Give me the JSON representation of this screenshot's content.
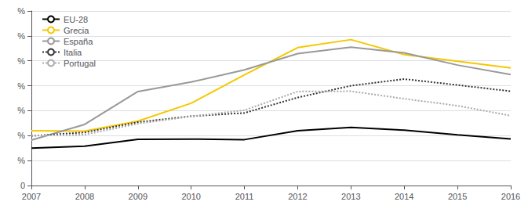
{
  "chart_data": {
    "type": "line",
    "x": [
      2007,
      2008,
      2009,
      2010,
      2011,
      2012,
      2013,
      2014,
      2015,
      2016
    ],
    "series": [
      {
        "name": "EU-28",
        "color": "#000000",
        "line_style": "solid",
        "values": [
          15.0,
          15.8,
          18.5,
          18.6,
          18.4,
          22.0,
          23.3,
          22.2,
          20.3,
          18.7
        ]
      },
      {
        "name": "Grecia",
        "color": "#F5C800",
        "line_style": "solid",
        "values": [
          22.0,
          21.8,
          25.8,
          33.0,
          44.4,
          55.3,
          58.5,
          52.5,
          49.8,
          47.2
        ]
      },
      {
        "name": "España",
        "color": "#999999",
        "line_style": "solid",
        "values": [
          18.2,
          24.5,
          37.7,
          41.5,
          46.4,
          52.9,
          55.5,
          53.2,
          48.3,
          44.5
        ]
      },
      {
        "name": "Italia",
        "color": "#333333",
        "line_style": "dotted",
        "values": [
          19.9,
          21.3,
          25.4,
          27.8,
          29.1,
          35.3,
          40.0,
          42.7,
          40.3,
          37.8
        ]
      },
      {
        "name": "Portugal",
        "color": "#aaaaaa",
        "line_style": "dotted",
        "values": [
          20.0,
          20.4,
          24.8,
          27.7,
          30.2,
          37.7,
          37.8,
          34.8,
          32.0,
          28.0
        ]
      }
    ],
    "xlim": [
      2007,
      2016
    ],
    "xticks": [
      2007,
      2008,
      2009,
      2010,
      2011,
      2012,
      2013,
      2014,
      2015,
      2016
    ],
    "ylim": [
      0,
      70
    ],
    "yticks": [
      0,
      {
        "value": 10,
        "label": "%"
      },
      {
        "value": 20,
        "label": "%"
      },
      {
        "value": 30,
        "label": "%"
      },
      {
        "value": 40,
        "label": "%"
      },
      {
        "value": 50,
        "label": "%"
      },
      {
        "value": 60,
        "label": "%"
      },
      {
        "value": 70,
        "label": "%"
      }
    ],
    "grid": true,
    "legend": "upper left"
  }
}
